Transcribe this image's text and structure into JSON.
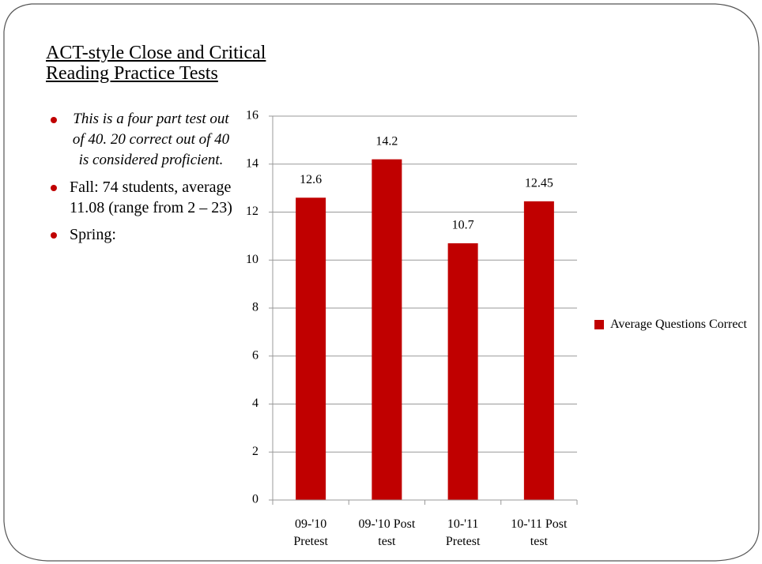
{
  "title": [
    "ACT-style Close and Critical",
    "Reading Practice Tests"
  ],
  "bullets": [
    "This is a four part test out of 40.  20 correct out of 40 is considered proficient.",
    "Fall:  74 students, average 11.08 (range from 2 – 23)",
    "Spring:"
  ],
  "chart_data": {
    "type": "bar",
    "categories": [
      "09-'10 Pretest",
      "09-'10 Post test",
      "10-'11 Pretest",
      "10-'11 Post test"
    ],
    "series": [
      {
        "name": "Average Questions Correct",
        "color": "#c00000",
        "values": [
          12.6,
          14.2,
          10.7,
          12.45
        ]
      }
    ],
    "ylim": [
      0,
      16
    ],
    "yticks": [
      0,
      2,
      4,
      6,
      8,
      10,
      12,
      14,
      16
    ],
    "grid": true,
    "legend": "right"
  }
}
